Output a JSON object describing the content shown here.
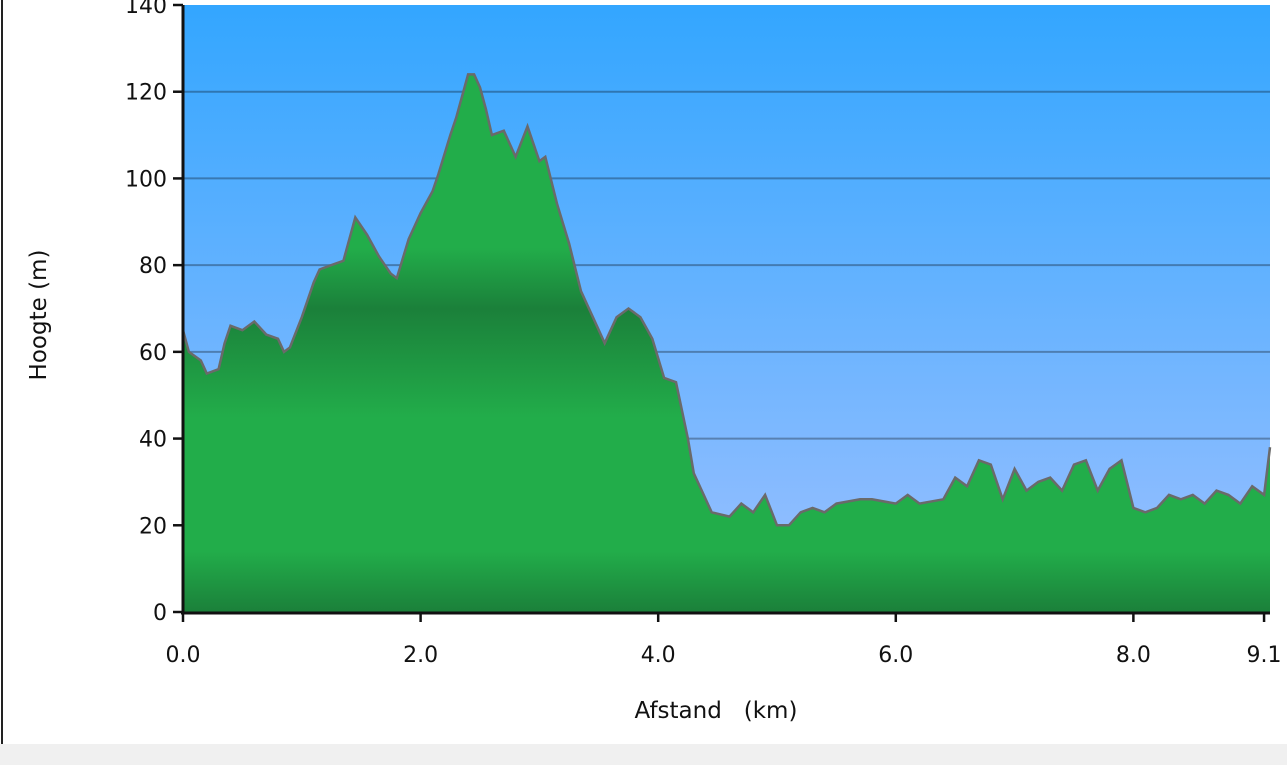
{
  "chart_data": {
    "type": "area",
    "title": "",
    "xlabel": "Afstand   (km)",
    "ylabel": "Hoogte (m)",
    "xlim": [
      0,
      9.15
    ],
    "ylim": [
      0,
      140
    ],
    "grid": true,
    "x_ticks": [
      {
        "value": 0,
        "label": "0.0"
      },
      {
        "value": 2,
        "label": "2.0"
      },
      {
        "value": 4,
        "label": "4.0"
      },
      {
        "value": 6,
        "label": "6.0"
      },
      {
        "value": 8,
        "label": "8.0"
      },
      {
        "value": 9.1,
        "label": "9.1"
      }
    ],
    "y_ticks": [
      {
        "value": 0,
        "label": "0"
      },
      {
        "value": 20,
        "label": "20"
      },
      {
        "value": 40,
        "label": "40"
      },
      {
        "value": 60,
        "label": "60"
      },
      {
        "value": 80,
        "label": "80"
      },
      {
        "value": 100,
        "label": "100"
      },
      {
        "value": 120,
        "label": "120"
      },
      {
        "value": 140,
        "label": "140"
      }
    ],
    "colors": {
      "sky_top": "#33a6ff",
      "sky_bottom": "#9cc0ff",
      "fill_light": "#22ad4a",
      "fill_dark": "#1b803a",
      "outline": "#6a6a6a"
    },
    "x": [
      0.0,
      0.05,
      0.15,
      0.2,
      0.3,
      0.35,
      0.4,
      0.5,
      0.6,
      0.7,
      0.8,
      0.85,
      0.9,
      1.0,
      1.1,
      1.15,
      1.25,
      1.35,
      1.45,
      1.55,
      1.65,
      1.75,
      1.8,
      1.9,
      2.0,
      2.1,
      2.15,
      2.25,
      2.3,
      2.4,
      2.45,
      2.5,
      2.55,
      2.6,
      2.7,
      2.8,
      2.9,
      3.0,
      3.05,
      3.15,
      3.25,
      3.35,
      3.45,
      3.55,
      3.65,
      3.75,
      3.85,
      3.95,
      4.05,
      4.15,
      4.25,
      4.3,
      4.45,
      4.6,
      4.7,
      4.8,
      4.9,
      5.0,
      5.1,
      5.2,
      5.3,
      5.4,
      5.5,
      5.7,
      5.8,
      6.0,
      6.1,
      6.2,
      6.4,
      6.5,
      6.6,
      6.7,
      6.8,
      6.9,
      7.0,
      7.1,
      7.2,
      7.3,
      7.4,
      7.5,
      7.6,
      7.7,
      7.8,
      7.9,
      8.0,
      8.1,
      8.2,
      8.3,
      8.4,
      8.5,
      8.6,
      8.7,
      8.8,
      8.9,
      9.0,
      9.1,
      9.15
    ],
    "y": [
      65,
      60,
      58,
      55,
      56,
      62,
      66,
      65,
      67,
      64,
      63,
      60,
      61,
      68,
      76,
      79,
      80,
      81,
      91,
      87,
      82,
      78,
      77,
      86,
      92,
      97,
      101,
      110,
      114,
      124,
      124,
      121,
      116,
      110,
      111,
      105,
      112,
      104,
      105,
      94,
      85,
      74,
      68,
      62,
      68,
      70,
      68,
      63,
      54,
      53,
      40,
      32,
      23,
      22,
      25,
      23,
      27,
      20,
      20,
      23,
      24,
      23,
      25,
      26,
      26,
      25,
      27,
      25,
      26,
      31,
      29,
      35,
      34,
      26,
      33,
      28,
      30,
      31,
      28,
      34,
      35,
      28,
      33,
      35,
      24,
      23,
      24,
      27,
      26,
      27,
      25,
      28,
      27,
      25,
      29,
      27,
      38
    ]
  }
}
